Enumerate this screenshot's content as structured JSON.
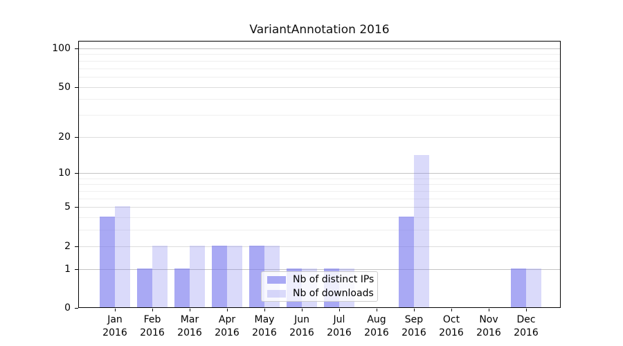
{
  "figure": {
    "title": "VariantAnnotation 2016"
  },
  "chart_data": {
    "type": "bar",
    "title": "VariantAnnotation 2016",
    "categories": [
      "Jan 2016",
      "Feb 2016",
      "Mar 2016",
      "Apr 2016",
      "May 2016",
      "Jun 2016",
      "Jul 2016",
      "Aug 2016",
      "Sep 2016",
      "Oct 2016",
      "Nov 2016",
      "Dec 2016"
    ],
    "months": [
      "Jan",
      "Feb",
      "Mar",
      "Apr",
      "May",
      "Jun",
      "Jul",
      "Aug",
      "Sep",
      "Oct",
      "Nov",
      "Dec"
    ],
    "year": "2016",
    "series": [
      {
        "name": "Nb of distinct IPs",
        "color": "#7777ee",
        "opacity": 0.63,
        "values": [
          4,
          1,
          1,
          2,
          2,
          1,
          1,
          0,
          4,
          0,
          0,
          1
        ]
      },
      {
        "name": "Nb of downloads",
        "color": "#7777ee",
        "opacity": 0.27,
        "values": [
          5,
          2,
          2,
          2,
          2,
          1,
          1,
          0,
          14,
          0,
          0,
          1
        ]
      }
    ],
    "xlabel": "",
    "ylabel": "",
    "yscale": "log1p",
    "ylim": [
      0,
      115
    ],
    "y_tick_labels": [
      "0",
      "1",
      "2",
      "5",
      "10",
      "20",
      "50",
      "100"
    ],
    "y_major_gridlines": [
      1,
      2,
      5,
      10,
      20,
      50,
      100
    ],
    "y_decade_gridlines": [
      1,
      10,
      100
    ],
    "y_minor_gridlines": [
      3,
      4,
      6,
      7,
      8,
      9,
      30,
      40,
      60,
      70,
      80,
      90
    ],
    "grid": "horizontal",
    "legend_position": "lower-center",
    "colors": {
      "bar_base": "#7777ee",
      "grid_major": "#dcdcdc",
      "grid_decade": "#c3c3c3",
      "grid_minor": "#efefef",
      "spine": "#000000",
      "text": "#000000",
      "legend_border": "#cccccc"
    }
  }
}
